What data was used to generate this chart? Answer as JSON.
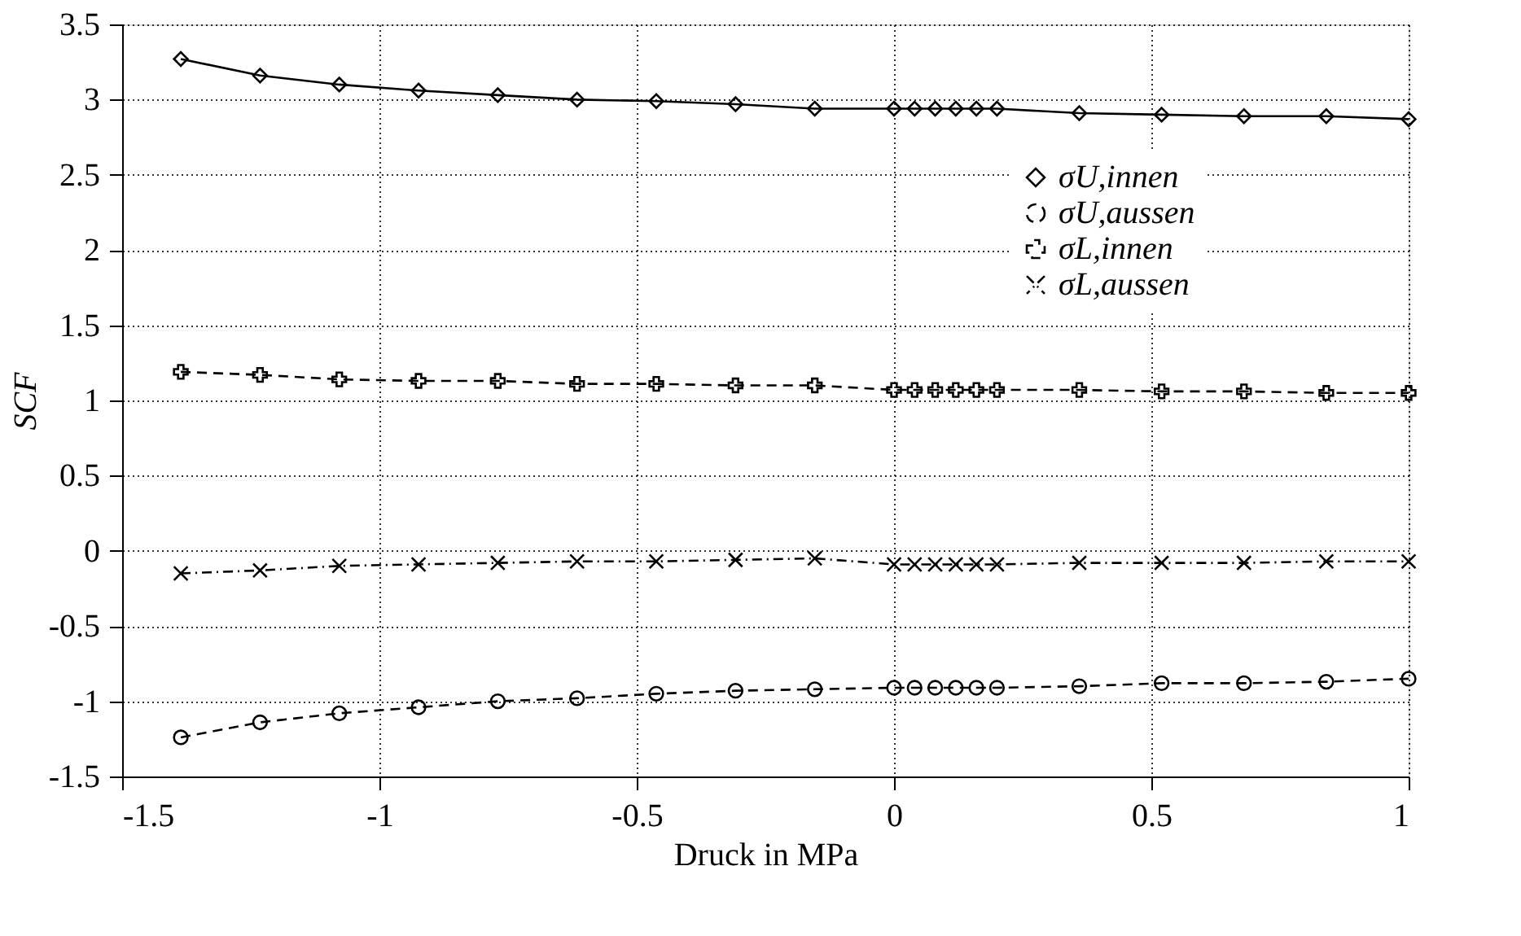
{
  "chart_data": {
    "type": "line",
    "xlabel": "Druck in MPa",
    "ylabel": "SCF",
    "xlim": [
      -1.5,
      1
    ],
    "xticks": [
      -1.5,
      -1,
      -0.5,
      0,
      0.5,
      1
    ],
    "ylim": [
      -1.5,
      3.5
    ],
    "yticks": [
      -1.5,
      -1,
      -0.5,
      0,
      0.5,
      1,
      1.5,
      2,
      2.5,
      3,
      3.5
    ],
    "grid": true,
    "legend": "top right",
    "x": [
      -1.386,
      -1.232,
      -1.078,
      -0.924,
      -0.77,
      -0.616,
      -0.462,
      -0.308,
      -0.154,
      0,
      0.04,
      0.08,
      0.12,
      0.16,
      0.2,
      0.36,
      0.52,
      0.68,
      0.84,
      1.0
    ],
    "series": [
      {
        "name": "σU,innen",
        "color": "#000000",
        "marker": "diamond",
        "line_style": "solid",
        "values": [
          3.27,
          3.16,
          3.1,
          3.06,
          3.03,
          3.0,
          2.99,
          2.97,
          2.94,
          2.94,
          2.94,
          2.94,
          2.94,
          2.94,
          2.94,
          2.91,
          2.9,
          2.89,
          2.89,
          2.87
        ]
      },
      {
        "name": "σU,aussen",
        "color": "#000000",
        "marker": "circle",
        "line_style": "dashed",
        "values": [
          -1.24,
          -1.14,
          -1.08,
          -1.04,
          -1.0,
          -0.98,
          -0.95,
          -0.93,
          -0.92,
          -0.91,
          -0.91,
          -0.91,
          -0.91,
          -0.91,
          -0.91,
          -0.9,
          -0.88,
          -0.88,
          -0.87,
          -0.85
        ]
      },
      {
        "name": "σL,innen",
        "color": "#000000",
        "marker": "cross",
        "line_style": "dashed",
        "values": [
          1.19,
          1.17,
          1.14,
          1.13,
          1.13,
          1.11,
          1.11,
          1.1,
          1.1,
          1.07,
          1.07,
          1.07,
          1.07,
          1.07,
          1.07,
          1.07,
          1.06,
          1.06,
          1.05,
          1.05
        ]
      },
      {
        "name": "σL,aussen",
        "color": "#000000",
        "marker": "x",
        "line_style": "dashdot",
        "values": [
          -0.15,
          -0.13,
          -0.1,
          -0.09,
          -0.08,
          -0.07,
          -0.07,
          -0.06,
          -0.05,
          -0.09,
          -0.09,
          -0.09,
          -0.09,
          -0.09,
          -0.09,
          -0.08,
          -0.08,
          -0.08,
          -0.07,
          -0.07
        ]
      }
    ]
  }
}
